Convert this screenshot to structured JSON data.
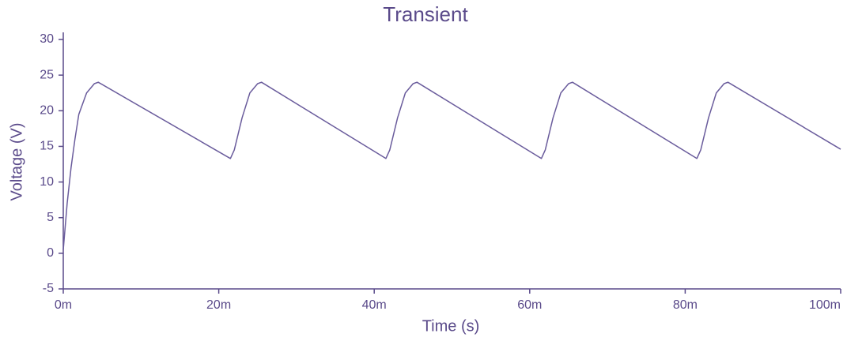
{
  "chart_data": {
    "type": "line",
    "title": "Transient",
    "xlabel": "Time (s)",
    "ylabel": "Voltage (V)",
    "x": [
      0,
      0.0005,
      0.001,
      0.0015,
      0.002,
      0.003,
      0.004,
      0.0045,
      0.0215,
      0.022,
      0.023,
      0.024,
      0.025,
      0.0255,
      0.0415,
      0.042,
      0.043,
      0.044,
      0.045,
      0.0455,
      0.0615,
      0.062,
      0.063,
      0.064,
      0.065,
      0.0655,
      0.0815,
      0.082,
      0.083,
      0.084,
      0.085,
      0.0855,
      0.1
    ],
    "series": [
      {
        "name": "V",
        "color": "#6a5c9c",
        "values": [
          0.5,
          7,
          12,
          16,
          19.5,
          22.5,
          23.8,
          24,
          13.3,
          14.5,
          19,
          22.5,
          23.8,
          24,
          13.3,
          14.5,
          19,
          22.5,
          23.8,
          24,
          13.3,
          14.5,
          19,
          22.5,
          23.8,
          24,
          13.3,
          14.5,
          19,
          22.5,
          23.8,
          24,
          14.6
        ]
      }
    ],
    "xlim": [
      0,
      0.1
    ],
    "xticks": [
      {
        "value": 0,
        "label": "0m"
      },
      {
        "value": 0.02,
        "label": "20m"
      },
      {
        "value": 0.04,
        "label": "40m"
      },
      {
        "value": 0.06,
        "label": "60m"
      },
      {
        "value": 0.08,
        "label": "80m"
      },
      {
        "value": 0.1,
        "label": "100m"
      }
    ],
    "ylim": [
      -5,
      31
    ],
    "yticks": [
      -5,
      0,
      5,
      10,
      15,
      20,
      25,
      30
    ],
    "grid": false
  }
}
